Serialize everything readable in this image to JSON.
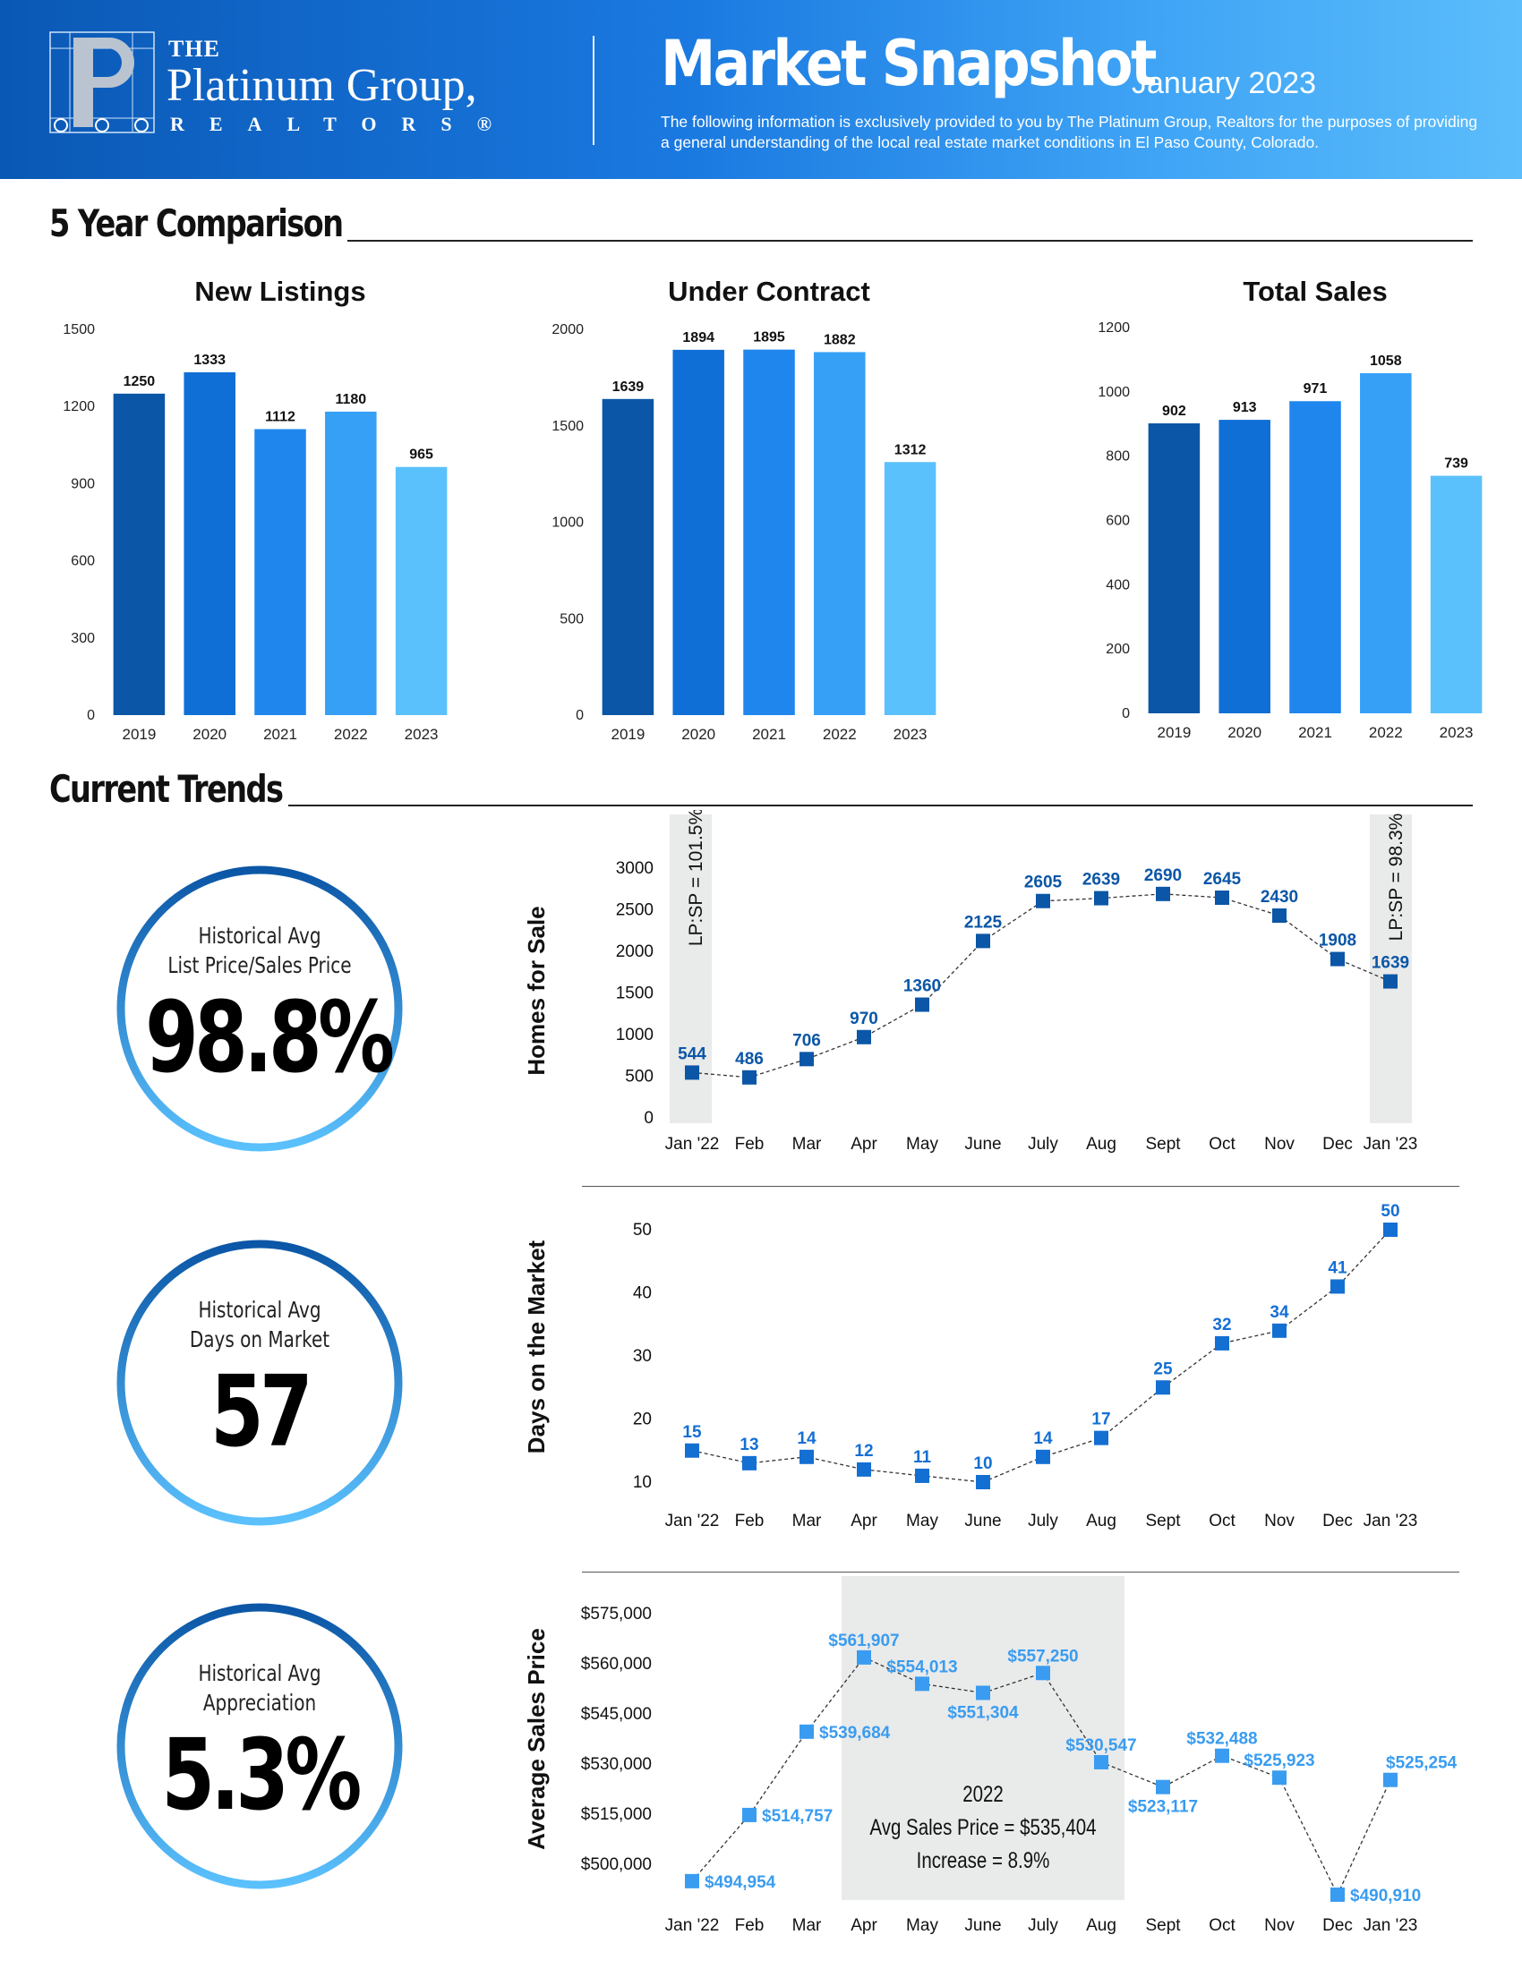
{
  "header": {
    "logo": {
      "the": "THE",
      "name": "Platinum Group,",
      "sub": "REALTORS®"
    },
    "title": "Market Snapshot",
    "date": "January 2023",
    "disclaimer": "The following information is exclusively provided to you by The Platinum Group, Realtors for the purposes of providing a general understanding of the local real estate market conditions in El Paso County, Colorado."
  },
  "sections": {
    "five_year": "5 Year Comparison",
    "current_trends": "Current Trends"
  },
  "colors": {
    "bars": [
      "#0b56a6",
      "#0f6fd6",
      "#1f86ee",
      "#36a0f7",
      "#5bc1fd"
    ],
    "line_homes": "#0b56a6",
    "line_days": "#146fd3",
    "line_price": "#3a9cf0",
    "shade": "#e9eaea"
  },
  "stats": [
    {
      "label1": "Historical Avg",
      "label2": "List Price/Sales Price",
      "value": "98.8%"
    },
    {
      "label1": "Historical Avg",
      "label2": "Days on Market",
      "value": "57"
    },
    {
      "label1": "Historical Avg",
      "label2": "Appreciation",
      "value": "5.3%"
    }
  ],
  "chart_data": [
    {
      "type": "bar",
      "title": "New Listings",
      "categories": [
        "2019",
        "2020",
        "2021",
        "2022",
        "2023"
      ],
      "values": [
        1250,
        1333,
        1112,
        1180,
        965
      ],
      "ylim": [
        0,
        1500
      ],
      "yticks": [
        0,
        300,
        600,
        900,
        1200,
        1500
      ]
    },
    {
      "type": "bar",
      "title": "Under Contract",
      "categories": [
        "2019",
        "2020",
        "2021",
        "2022",
        "2023"
      ],
      "values": [
        1639,
        1894,
        1895,
        1882,
        1312
      ],
      "ylim": [
        0,
        2000
      ],
      "yticks": [
        0,
        500,
        1000,
        1500,
        2000
      ]
    },
    {
      "type": "bar",
      "title": "Total Sales",
      "categories": [
        "2019",
        "2020",
        "2021",
        "2022",
        "2023"
      ],
      "values": [
        902,
        913,
        971,
        1058,
        739
      ],
      "ylim": [
        0,
        1200
      ],
      "yticks": [
        0,
        200,
        400,
        600,
        800,
        1000,
        1200
      ]
    },
    {
      "type": "line",
      "ylabel": "Homes for Sale",
      "categories": [
        "Jan '22",
        "Feb",
        "Mar",
        "Apr",
        "May",
        "June",
        "July",
        "Aug",
        "Sept",
        "Oct",
        "Nov",
        "Dec",
        "Jan '23"
      ],
      "values": [
        544,
        486,
        706,
        970,
        1360,
        2125,
        2605,
        2639,
        2690,
        2645,
        2430,
        1908,
        1639
      ],
      "labels": [
        "544",
        "486",
        "706",
        "970",
        "1360",
        "2125",
        "2605",
        "2639",
        "2690",
        "2645",
        "2430",
        "1908",
        "1639"
      ],
      "ylim": [
        0,
        3000
      ],
      "yticks": [
        0,
        500,
        1000,
        1500,
        2000,
        2500,
        3000
      ],
      "annotations": [
        "LP:SP = 101.5%",
        "LP:SP = 98.3%"
      ]
    },
    {
      "type": "line",
      "ylabel": "Days on the Market",
      "categories": [
        "Jan '22",
        "Feb",
        "Mar",
        "Apr",
        "May",
        "June",
        "July",
        "Aug",
        "Sept",
        "Oct",
        "Nov",
        "Dec",
        "Jan '23"
      ],
      "values": [
        15,
        13,
        14,
        12,
        11,
        10,
        14,
        17,
        25,
        32,
        34,
        41,
        50
      ],
      "labels": [
        "15",
        "13",
        "14",
        "12",
        "11",
        "10",
        "14",
        "17",
        "25",
        "32",
        "34",
        "41",
        "50"
      ],
      "ylim": [
        10,
        50
      ],
      "yticks": [
        10,
        20,
        30,
        40,
        50
      ]
    },
    {
      "type": "line",
      "ylabel": "Average Sales Price",
      "categories": [
        "Jan '22",
        "Feb",
        "Mar",
        "Apr",
        "May",
        "June",
        "July",
        "Aug",
        "Sept",
        "Oct",
        "Nov",
        "Dec",
        "Jan '23"
      ],
      "values": [
        494954,
        514757,
        539684,
        561907,
        554013,
        551304,
        557250,
        530547,
        523117,
        532488,
        525923,
        490910,
        525254
      ],
      "labels": [
        "$494,954",
        "$514,757",
        "$539,684",
        "$561,907",
        "$554,013",
        "$551,304",
        "$557,250",
        "$530,547",
        "$523,117",
        "$532,488",
        "$525,923",
        "$490,910",
        "$525,254"
      ],
      "ylim": [
        500000,
        575000
      ],
      "yticks": [
        500000,
        515000,
        530000,
        545000,
        560000,
        575000
      ],
      "ytick_labels": [
        "$500,000",
        "$515,000",
        "$530,000",
        "$545,000",
        "$560,000",
        "$575,000"
      ],
      "annotation_lines": [
        "2022",
        "Avg Sales Price = $535,404",
        "Increase = 8.9%"
      ]
    }
  ]
}
